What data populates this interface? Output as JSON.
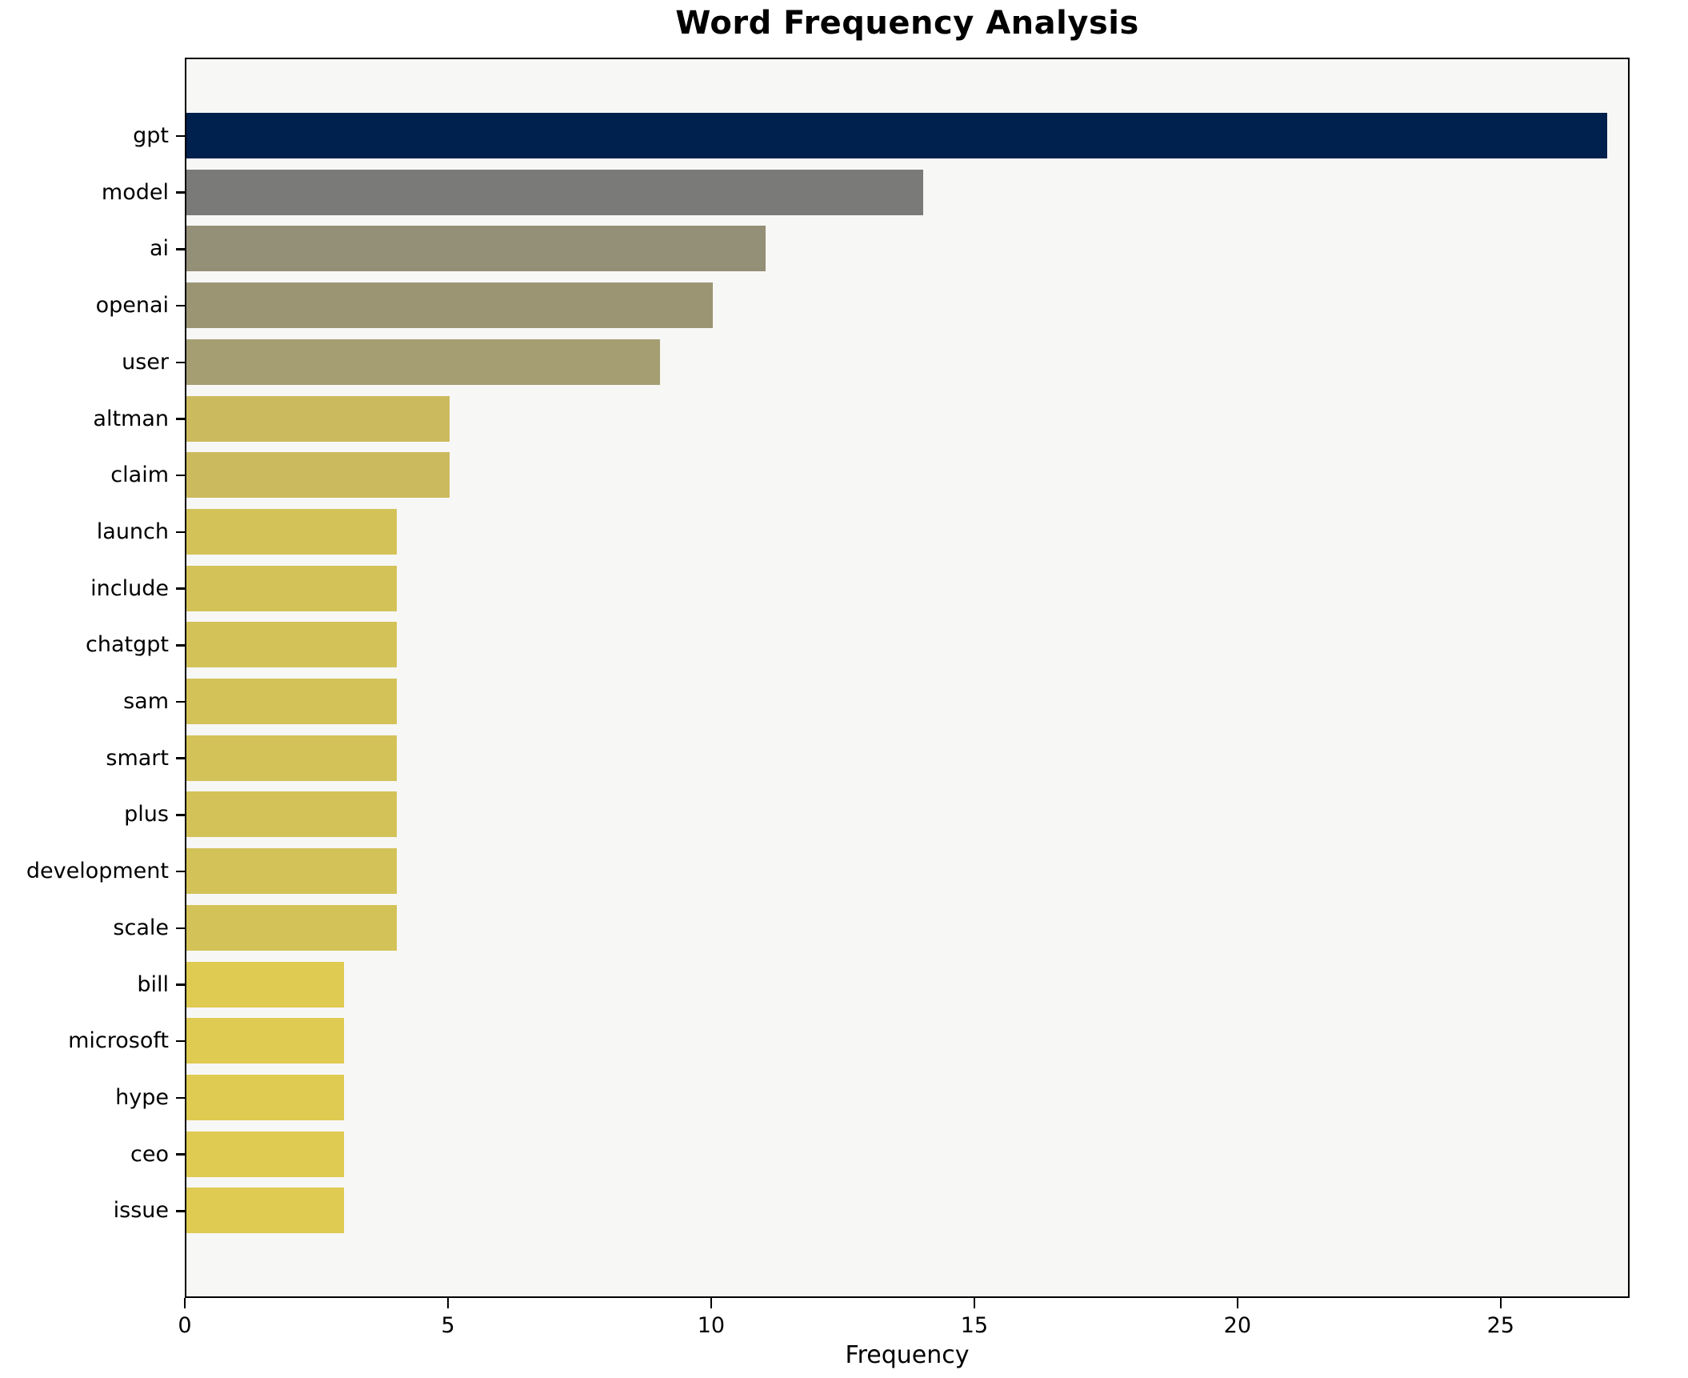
{
  "chart_data": {
    "type": "bar",
    "orientation": "horizontal",
    "title": "Word Frequency Analysis",
    "xlabel": "Frequency",
    "ylabel": "",
    "categories": [
      "gpt",
      "model",
      "ai",
      "openai",
      "user",
      "altman",
      "claim",
      "launch",
      "include",
      "chatgpt",
      "sam",
      "smart",
      "plus",
      "development",
      "scale",
      "bill",
      "microsoft",
      "hype",
      "ceo",
      "issue"
    ],
    "values": [
      27,
      14,
      11,
      10,
      9,
      5,
      5,
      4,
      4,
      4,
      4,
      4,
      4,
      4,
      4,
      3,
      3,
      3,
      3,
      3
    ],
    "bar_colors": [
      "#00204d",
      "#7a7a78",
      "#948f77",
      "#9c9574",
      "#a59e72",
      "#ccba5e",
      "#ccba5e",
      "#d3c258",
      "#d3c258",
      "#d3c258",
      "#d3c258",
      "#d3c258",
      "#d3c258",
      "#d3c258",
      "#d3c258",
      "#dfca52",
      "#dfca52",
      "#dfca52",
      "#dfca52",
      "#dfca52"
    ],
    "xlim": [
      0,
      27.45
    ],
    "x_ticks": [
      0,
      5,
      10,
      15,
      20,
      25
    ],
    "grid": false,
    "legend_position": "none"
  },
  "colors": {
    "figure_bg": "#ffffff",
    "axes_bg": "#f7f7f6",
    "spine": "#000000",
    "text": "#000000"
  }
}
